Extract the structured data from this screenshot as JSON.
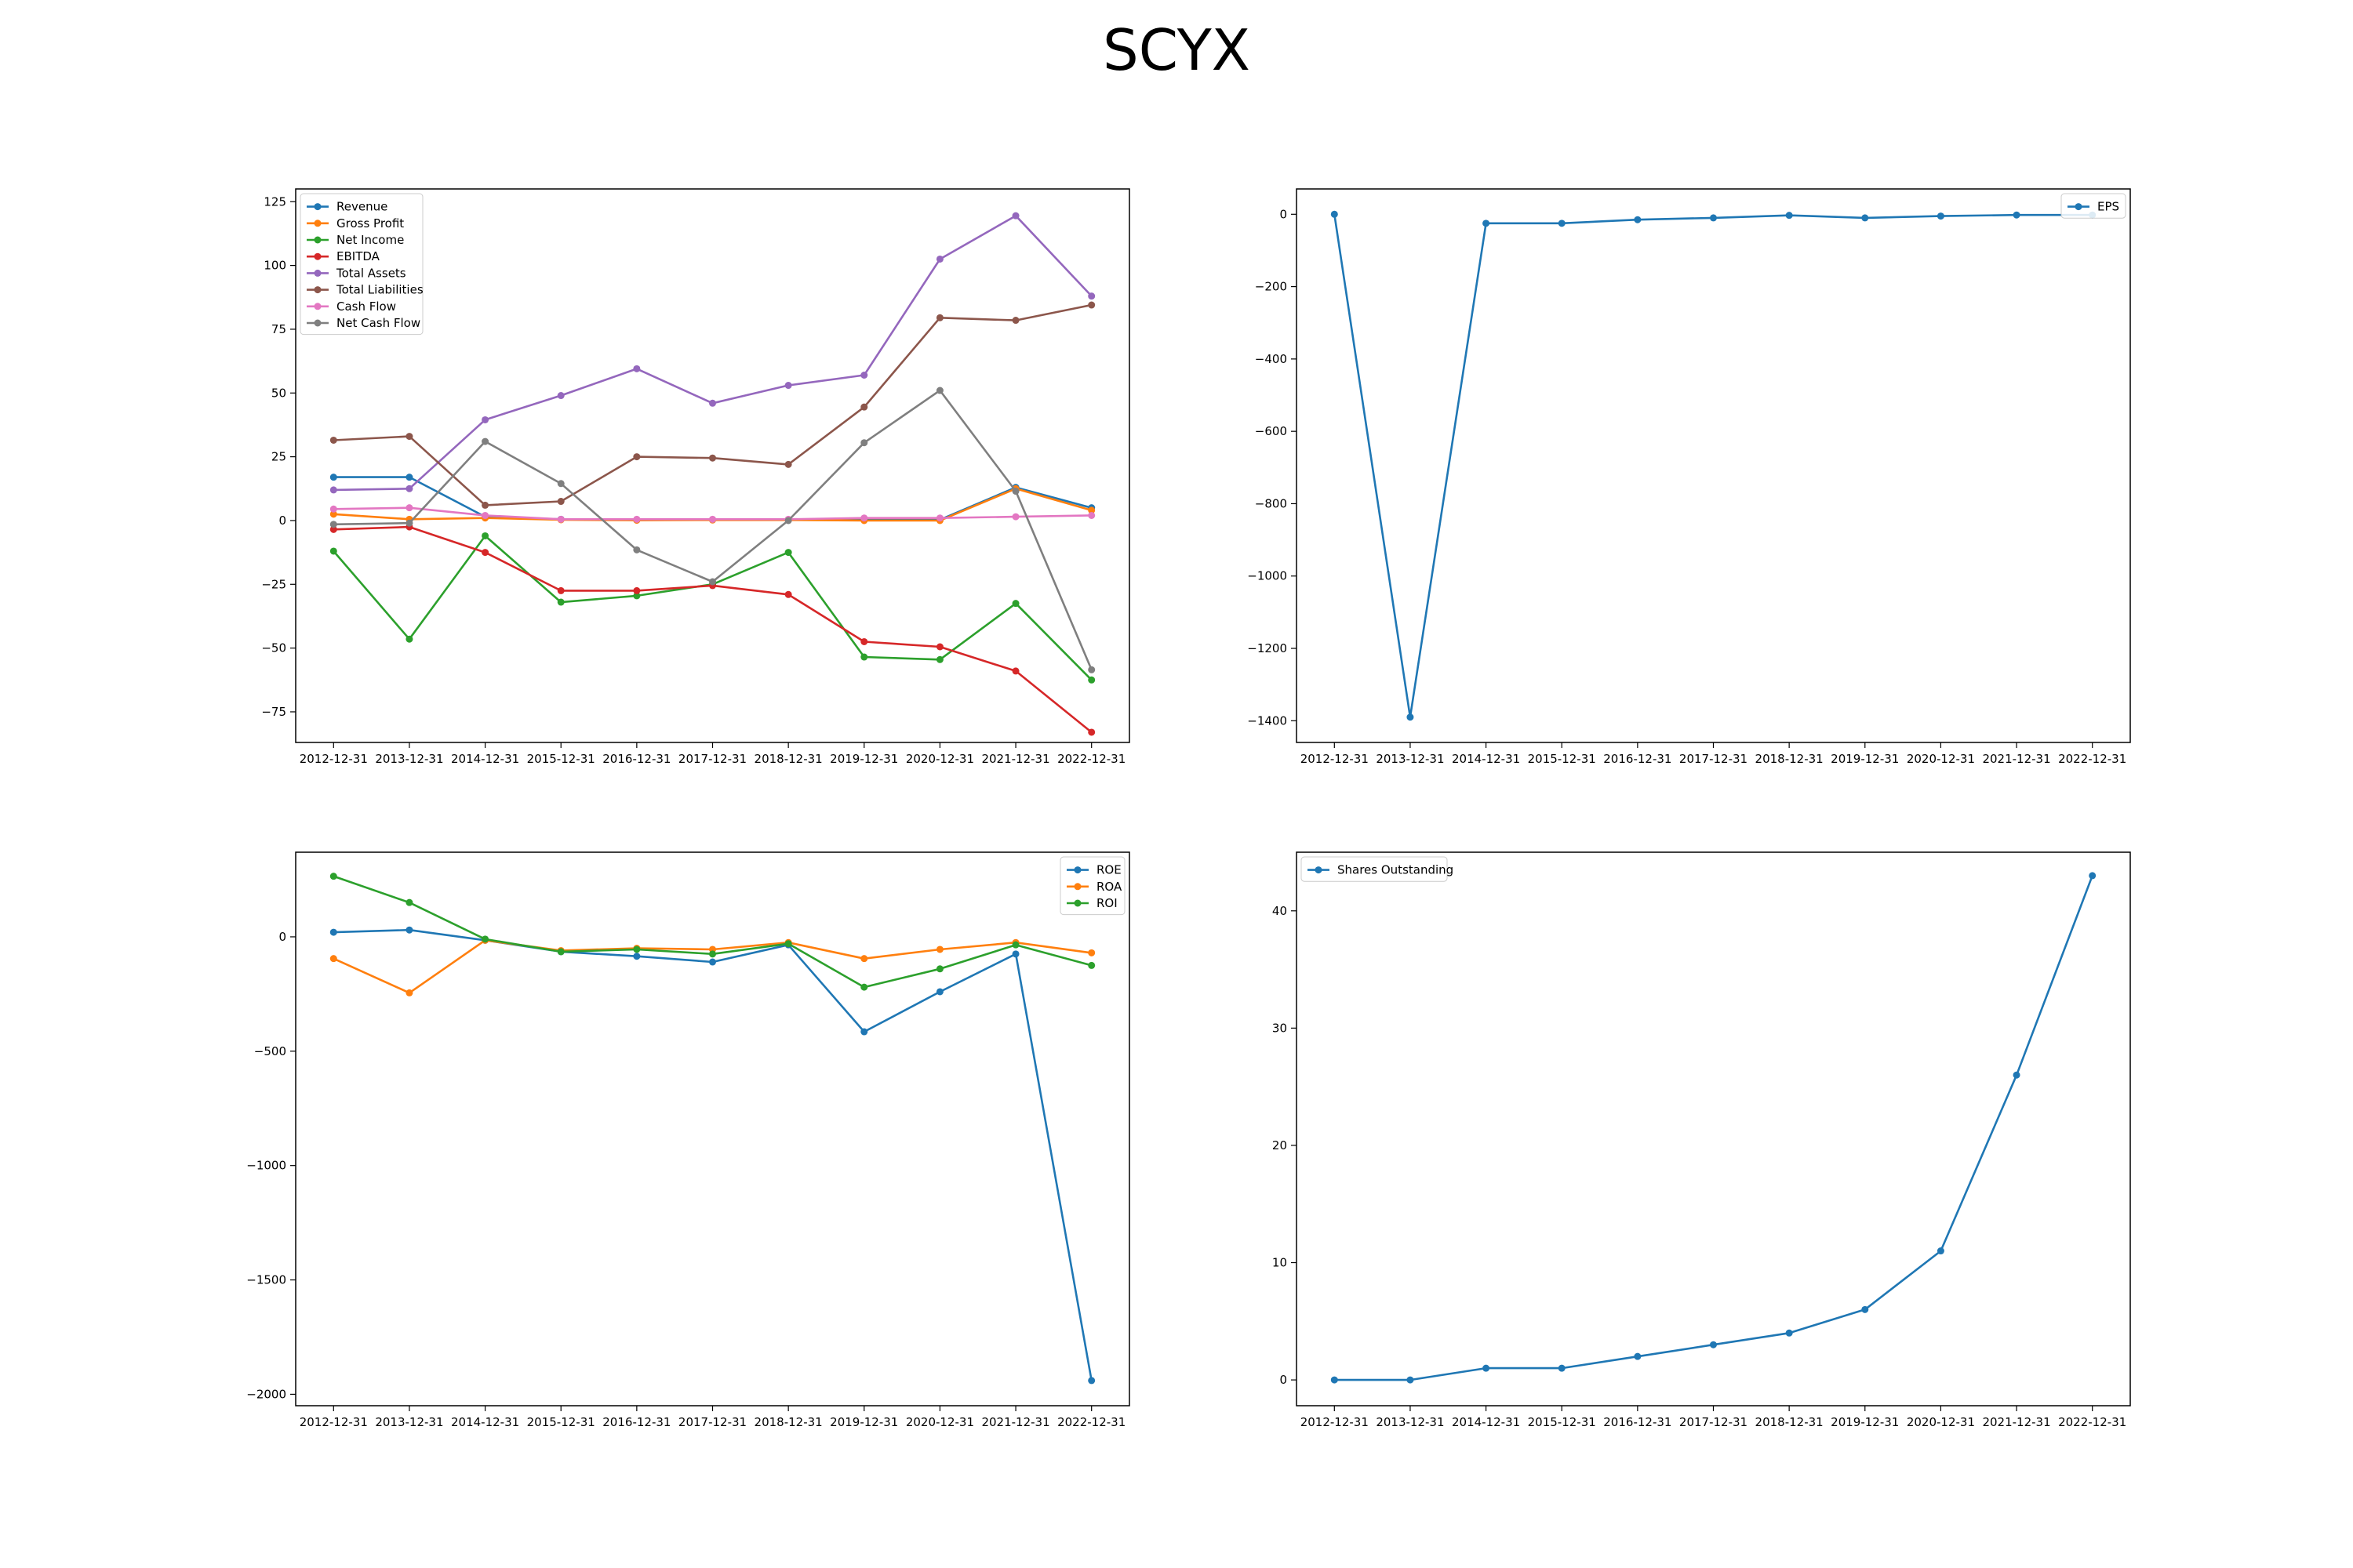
{
  "title": "SCYX",
  "colors": {
    "blue": "#1f77b4",
    "orange": "#ff7f0e",
    "green": "#2ca02c",
    "red": "#d62728",
    "purple": "#9467bd",
    "brown": "#8c564b",
    "pink": "#e377c2",
    "gray": "#7f7f7f"
  },
  "chart_data": [
    {
      "type": "line",
      "categories": [
        "2012-12-31",
        "2013-12-31",
        "2014-12-31",
        "2015-12-31",
        "2016-12-31",
        "2017-12-31",
        "2018-12-31",
        "2019-12-31",
        "2020-12-31",
        "2021-12-31",
        "2022-12-31"
      ],
      "ylim": [
        -87,
        130
      ],
      "yticks": [
        -75,
        -50,
        -25,
        0,
        25,
        50,
        75,
        100,
        125
      ],
      "grid": false,
      "legend_position": "top-left",
      "series": [
        {
          "name": "Revenue",
          "color": "#1f77b4",
          "values": [
            17,
            17,
            1.5,
            0.5,
            0.2,
            0.3,
            0.3,
            0.2,
            0.3,
            13,
            5
          ]
        },
        {
          "name": "Gross Profit",
          "color": "#ff7f0e",
          "values": [
            2.5,
            0.5,
            1,
            0.3,
            0.1,
            0.2,
            0.2,
            0,
            0,
            12.5,
            4
          ]
        },
        {
          "name": "Net Income",
          "color": "#2ca02c",
          "values": [
            -12,
            -46.5,
            -6,
            -32,
            -29.5,
            -25,
            -12.5,
            -53.5,
            -54.5,
            -32.5,
            -62.5
          ]
        },
        {
          "name": "EBITDA",
          "color": "#d62728",
          "values": [
            -3.5,
            -2.5,
            -12.5,
            -27.5,
            -27.5,
            -25.5,
            -29,
            -47.5,
            -49.5,
            -59,
            -83
          ]
        },
        {
          "name": "Total Assets",
          "color": "#9467bd",
          "values": [
            12,
            12.5,
            39.5,
            49,
            59.5,
            46,
            53,
            57,
            102.5,
            119.5,
            88
          ]
        },
        {
          "name": "Total Liabilities",
          "color": "#8c564b",
          "values": [
            31.5,
            33,
            6,
            7.5,
            25,
            24.5,
            22,
            44.5,
            79.5,
            78.5,
            84.5
          ]
        },
        {
          "name": "Cash Flow",
          "color": "#e377c2",
          "values": [
            4.5,
            5,
            2,
            0.5,
            0.5,
            0.5,
            0.5,
            1,
            1,
            1.5,
            2
          ]
        },
        {
          "name": "Net Cash Flow",
          "color": "#7f7f7f",
          "values": [
            -1.5,
            -1,
            31,
            14.5,
            -11.5,
            -24,
            0,
            30.5,
            51,
            11.5,
            -58.5
          ]
        }
      ]
    },
    {
      "type": "line",
      "categories": [
        "2012-12-31",
        "2013-12-31",
        "2014-12-31",
        "2015-12-31",
        "2016-12-31",
        "2017-12-31",
        "2018-12-31",
        "2019-12-31",
        "2020-12-31",
        "2021-12-31",
        "2022-12-31"
      ],
      "ylim": [
        -1460,
        70
      ],
      "yticks": [
        -1400,
        -1200,
        -1000,
        -800,
        -600,
        -400,
        -200,
        0
      ],
      "grid": false,
      "legend_position": "top-right",
      "series": [
        {
          "name": "EPS",
          "color": "#1f77b4",
          "values": [
            0,
            -1390,
            -25,
            -25,
            -15,
            -10,
            -3,
            -10,
            -5,
            -2,
            -2
          ]
        }
      ]
    },
    {
      "type": "line",
      "categories": [
        "2012-12-31",
        "2013-12-31",
        "2014-12-31",
        "2015-12-31",
        "2016-12-31",
        "2017-12-31",
        "2018-12-31",
        "2019-12-31",
        "2020-12-31",
        "2021-12-31",
        "2022-12-31"
      ],
      "ylim": [
        -2050,
        370
      ],
      "yticks": [
        -2000,
        -1500,
        -1000,
        -500,
        0
      ],
      "grid": false,
      "legend_position": "top-right",
      "series": [
        {
          "name": "ROE",
          "color": "#1f77b4",
          "values": [
            20,
            30,
            -15,
            -65,
            -85,
            -110,
            -35,
            -415,
            -240,
            -75,
            -1940
          ]
        },
        {
          "name": "ROA",
          "color": "#ff7f0e",
          "values": [
            -95,
            -245,
            -15,
            -60,
            -50,
            -55,
            -25,
            -95,
            -55,
            -25,
            -70
          ]
        },
        {
          "name": "ROI",
          "color": "#2ca02c",
          "values": [
            265,
            150,
            -10,
            -65,
            -55,
            -75,
            -30,
            -220,
            -140,
            -35,
            -125
          ]
        }
      ]
    },
    {
      "type": "line",
      "categories": [
        "2012-12-31",
        "2013-12-31",
        "2014-12-31",
        "2015-12-31",
        "2016-12-31",
        "2017-12-31",
        "2018-12-31",
        "2019-12-31",
        "2020-12-31",
        "2021-12-31",
        "2022-12-31"
      ],
      "ylim": [
        -2.2,
        45
      ],
      "yticks": [
        0,
        10,
        20,
        30,
        40
      ],
      "grid": false,
      "legend_position": "top-left",
      "series": [
        {
          "name": "Shares Outstanding",
          "color": "#1f77b4",
          "values": [
            0,
            0,
            1,
            1,
            2,
            3,
            4,
            6,
            11,
            26,
            43
          ]
        }
      ]
    }
  ]
}
